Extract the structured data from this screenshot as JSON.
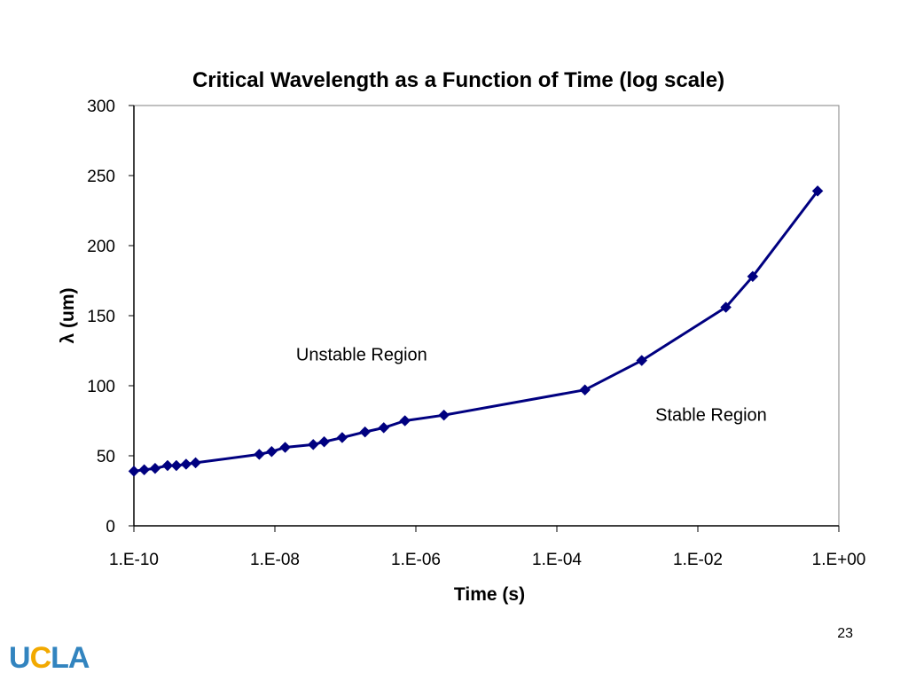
{
  "colors": {
    "series": "#000080",
    "plot_border": "#808080",
    "axis": "#000000",
    "logo_blue": "#3284bf",
    "logo_gold": "#f2a900"
  },
  "page_number": "23",
  "logo": {
    "part1": "U",
    "part2": "C",
    "part3": "LA"
  },
  "chart_data": {
    "type": "scatter",
    "title": "Critical Wavelength as a Function of Time (log scale)",
    "xlabel": "Time (s)",
    "ylabel": "λ (um)",
    "x_scale": "log",
    "x_tick_labels": [
      "1.E-10",
      "1.E-08",
      "1.E-06",
      "1.E-04",
      "1.E-02",
      "1.E+00"
    ],
    "y_tick_labels": [
      "0",
      "50",
      "100",
      "150",
      "200",
      "250",
      "300"
    ],
    "xlim": [
      1e-10,
      1
    ],
    "ylim": [
      0,
      300
    ],
    "grid": false,
    "legend": "none",
    "marker": "diamond",
    "annotations": [
      {
        "text": "Unstable Region",
        "x": 2e-08,
        "y": 118
      },
      {
        "text": "Stable Region",
        "x": 0.0025,
        "y": 75
      }
    ],
    "series": [
      {
        "x": [
          1e-10,
          1.4e-10,
          2e-10,
          3e-10,
          4e-10,
          5.5e-10,
          7.5e-10,
          6e-09,
          9e-09,
          1.4e-08,
          3.5e-08,
          5e-08,
          9e-08,
          1.9e-07,
          3.5e-07,
          7e-07,
          2.5e-06,
          0.00025,
          0.0016,
          0.025,
          0.06,
          0.5
        ],
        "y": [
          39,
          40,
          41,
          43,
          43,
          44,
          45,
          51,
          53,
          56,
          58,
          60,
          63,
          67,
          70,
          75,
          79,
          97,
          118,
          156,
          178,
          239
        ]
      }
    ]
  }
}
